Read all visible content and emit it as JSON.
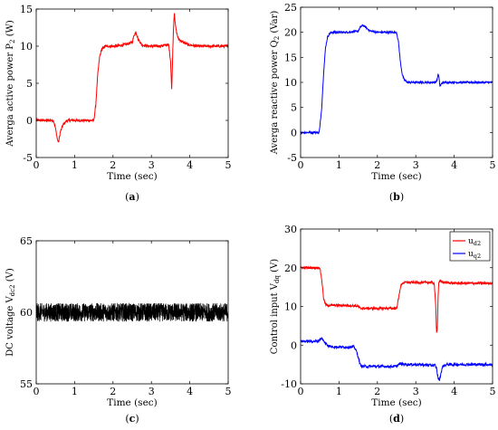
{
  "chart_data": [
    {
      "id": "a",
      "type": "line",
      "caption": "a",
      "xlabel": "Time (sec)",
      "ylabel": "Averga active power P",
      "ylabel_sub": "2",
      "ylabel_unit": "(W)",
      "xlim": [
        0,
        5
      ],
      "ylim": [
        -5,
        15
      ],
      "xticks": [
        0,
        1,
        2,
        3,
        4,
        5
      ],
      "yticks": [
        -5,
        0,
        5,
        10,
        15
      ],
      "grid": false,
      "series": [
        {
          "color": "#ff0000",
          "noise": 0.18,
          "x": [
            0,
            0.45,
            0.5,
            0.55,
            0.58,
            0.63,
            0.7,
            0.8,
            1.0,
            1.5,
            1.55,
            1.6,
            1.65,
            1.7,
            1.75,
            1.8,
            1.85,
            1.95,
            2.1,
            2.3,
            2.5,
            2.55,
            2.6,
            2.65,
            2.75,
            2.9,
            3.2,
            3.45,
            3.5,
            3.53,
            3.56,
            3.58,
            3.6,
            3.62,
            3.65,
            3.7,
            3.8,
            3.95,
            4.2,
            5
          ],
          "y": [
            0,
            0,
            -1,
            -2.5,
            -3,
            -1.5,
            -0.6,
            0,
            0,
            0,
            2,
            6,
            8.5,
            9.5,
            9.8,
            10,
            10,
            10,
            10,
            10.2,
            10.5,
            11.5,
            11.9,
            11,
            10.2,
            10,
            10,
            10.2,
            8,
            4,
            10,
            13,
            14.6,
            13,
            12,
            11,
            10.6,
            10.2,
            10,
            10
          ]
        }
      ]
    },
    {
      "id": "b",
      "type": "line",
      "caption": "b",
      "xlabel": "Time (sec)",
      "ylabel": "Averga reactive power Q",
      "ylabel_sub": "2",
      "ylabel_unit": "(Var)",
      "xlim": [
        0,
        5
      ],
      "ylim": [
        -5,
        25
      ],
      "xticks": [
        0,
        1,
        2,
        3,
        4,
        5
      ],
      "yticks": [
        -5,
        0,
        5,
        10,
        15,
        20,
        25
      ],
      "grid": false,
      "series": [
        {
          "color": "#0000ff",
          "noise": 0.2,
          "x": [
            0,
            0.48,
            0.5,
            0.55,
            0.6,
            0.65,
            0.7,
            0.75,
            0.8,
            0.9,
            1.2,
            1.5,
            1.55,
            1.62,
            1.7,
            1.8,
            2.0,
            2.5,
            2.55,
            2.6,
            2.65,
            2.7,
            2.75,
            2.8,
            2.9,
            3.2,
            3.5,
            3.55,
            3.58,
            3.6,
            3.63,
            3.66,
            3.7,
            3.8,
            4.2,
            5
          ],
          "y": [
            0,
            0,
            1,
            5,
            12,
            17,
            19,
            19.7,
            20,
            20,
            20,
            20.2,
            21,
            21.4,
            21,
            20.3,
            20,
            20,
            18,
            14,
            11.5,
            10.5,
            10.2,
            10,
            10,
            10,
            10,
            10.3,
            11.6,
            11.2,
            9.2,
            9.6,
            10,
            10,
            10,
            10
          ]
        }
      ]
    },
    {
      "id": "c",
      "type": "line",
      "caption": "c",
      "xlabel": "Time (sec)",
      "ylabel": "DC voltage V",
      "ylabel_sub": "dc2",
      "ylabel_unit": "(V)",
      "xlim": [
        0,
        5
      ],
      "ylim": [
        55,
        65
      ],
      "xticks": [
        0,
        1,
        2,
        3,
        4,
        5
      ],
      "yticks": [
        55,
        60,
        65
      ],
      "grid": false,
      "series": [
        {
          "color": "#000000",
          "noise": 0.65,
          "dense": true,
          "x": [
            0,
            5
          ],
          "y": [
            60,
            60
          ]
        }
      ]
    },
    {
      "id": "d",
      "type": "line",
      "caption": "d",
      "xlabel": "Time (sec)",
      "ylabel": "Control input V",
      "ylabel_sub": "dq",
      "ylabel_unit": "(V)",
      "xlim": [
        0,
        5
      ],
      "ylim": [
        -10,
        30
      ],
      "xticks": [
        0,
        1,
        2,
        3,
        4,
        5
      ],
      "yticks": [
        -10,
        0,
        10,
        20,
        30
      ],
      "grid": false,
      "legend": {
        "position": "top-right"
      },
      "series": [
        {
          "name": "u",
          "name_sub": "d2",
          "color": "#ff0000",
          "noise": 0.3,
          "x": [
            0,
            0.5,
            0.55,
            0.6,
            0.65,
            0.7,
            0.75,
            1.0,
            1.4,
            1.5,
            1.55,
            1.6,
            2.0,
            2.5,
            2.55,
            2.6,
            2.65,
            2.7,
            2.8,
            3.0,
            3.4,
            3.48,
            3.52,
            3.54,
            3.56,
            3.58,
            3.6,
            3.62,
            3.7,
            4.0,
            5
          ],
          "y": [
            20,
            20,
            17,
            12,
            10.5,
            10.2,
            10.3,
            10.3,
            10.2,
            10,
            9.5,
            9.5,
            9.5,
            9.5,
            12,
            15,
            16,
            16.2,
            16.2,
            16.2,
            16.2,
            16,
            10,
            3.5,
            4,
            12,
            16.3,
            16.5,
            16.3,
            16,
            16
          ]
        },
        {
          "name": "u",
          "name_sub": "q2",
          "color": "#0000ff",
          "noise": 0.35,
          "x": [
            0,
            0.45,
            0.5,
            0.55,
            0.6,
            0.7,
            0.8,
            1.0,
            1.4,
            1.45,
            1.5,
            1.55,
            1.6,
            1.8,
            2.0,
            2.5,
            2.55,
            2.6,
            2.8,
            3.0,
            3.4,
            3.5,
            3.54,
            3.58,
            3.62,
            3.66,
            3.7,
            3.8,
            4.0,
            4.5,
            5
          ],
          "y": [
            1,
            1,
            1.5,
            1.8,
            1,
            0,
            -0.4,
            -0.5,
            -0.5,
            -1.5,
            -3,
            -5,
            -5.5,
            -5.5,
            -5.5,
            -5.5,
            -5,
            -4.8,
            -5,
            -5,
            -5.2,
            -5.2,
            -6,
            -8.5,
            -9,
            -7,
            -5.5,
            -5,
            -5,
            -5,
            -5
          ]
        }
      ]
    }
  ]
}
